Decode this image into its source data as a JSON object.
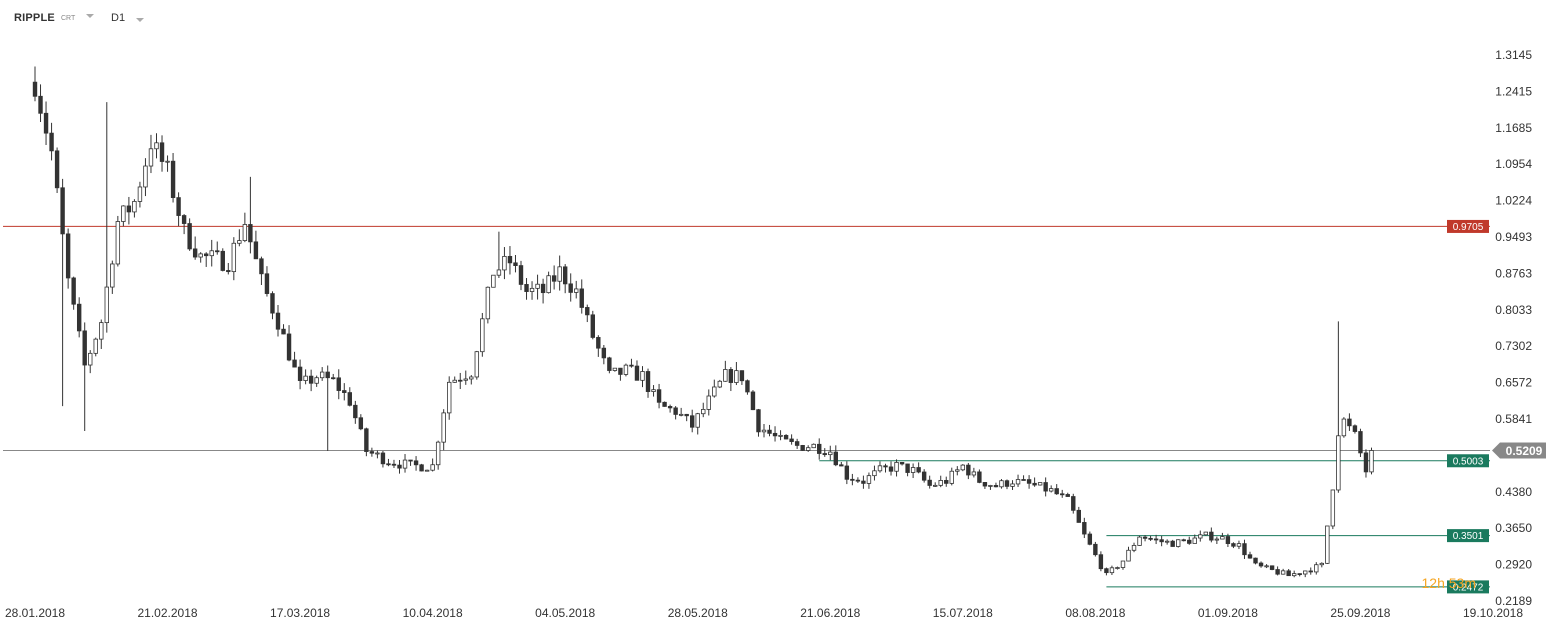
{
  "toolbar": {
    "symbol": "RIPPLE",
    "source": "CRT",
    "timeframe": "D1"
  },
  "countdown": "12h 53m",
  "colors": {
    "candle": "#333333",
    "bull_fill": "#ffffff",
    "bear_fill": "#333333",
    "resistance": "#c0392b",
    "support": "#1a7a5e",
    "current": "#888888"
  },
  "chart_data": {
    "type": "candlestick",
    "title": "",
    "xlabel": "",
    "ylabel": "",
    "x_range": [
      "2018-01-28",
      "2018-10-19"
    ],
    "ylim": [
      0.2189,
      1.37
    ],
    "y_ticks": [
      "1.3145",
      "1.2415",
      "1.1685",
      "1.0954",
      "1.0224",
      "0.9493",
      "0.8763",
      "0.8033",
      "0.7302",
      "0.6572",
      "0.5841",
      "0.5209",
      "0.4380",
      "0.3650",
      "0.2920",
      "0.2189"
    ],
    "x_ticks": [
      "28.01.2018",
      "21.02.2018",
      "17.03.2018",
      "10.04.2018",
      "04.05.2018",
      "28.05.2018",
      "21.06.2018",
      "15.07.2018",
      "08.08.2018",
      "01.09.2018",
      "25.09.2018",
      "19.10.2018"
    ],
    "grid": false,
    "levels": [
      {
        "label": "0.9705",
        "value": 0.9705,
        "kind": "resistance"
      },
      {
        "label": "0.5003",
        "value": 0.5003,
        "kind": "support",
        "start": "2018-06-19"
      },
      {
        "label": "0.3501",
        "value": 0.3501,
        "kind": "support",
        "start": "2018-08-10"
      },
      {
        "label": "0.2472",
        "value": 0.2472,
        "kind": "support",
        "start": "2018-08-10"
      }
    ],
    "current_price": {
      "label": "0.5209",
      "value": 0.5209
    },
    "anchors": [
      [
        "2018-01-28",
        1.26
      ],
      [
        "2018-01-31",
        1.12
      ],
      [
        "2018-02-03",
        0.86
      ],
      [
        "2018-02-06",
        0.69
      ],
      [
        "2018-02-09",
        0.78
      ],
      [
        "2018-02-12",
        0.98
      ],
      [
        "2018-02-15",
        1.02
      ],
      [
        "2018-02-18",
        1.14
      ],
      [
        "2018-02-21",
        1.08
      ],
      [
        "2018-02-24",
        0.96
      ],
      [
        "2018-02-27",
        0.91
      ],
      [
        "2018-03-04",
        0.9
      ],
      [
        "2018-03-07",
        0.98
      ],
      [
        "2018-03-10",
        0.86
      ],
      [
        "2018-03-13",
        0.78
      ],
      [
        "2018-03-17",
        0.65
      ],
      [
        "2018-03-20",
        0.67
      ],
      [
        "2018-03-23",
        0.66
      ],
      [
        "2018-03-26",
        0.62
      ],
      [
        "2018-03-29",
        0.52
      ],
      [
        "2018-04-02",
        0.5
      ],
      [
        "2018-04-06",
        0.49
      ],
      [
        "2018-04-10",
        0.49
      ],
      [
        "2018-04-13",
        0.66
      ],
      [
        "2018-04-17",
        0.68
      ],
      [
        "2018-04-21",
        0.88
      ],
      [
        "2018-04-24",
        0.9
      ],
      [
        "2018-04-27",
        0.84
      ],
      [
        "2018-04-30",
        0.84
      ],
      [
        "2018-05-03",
        0.88
      ],
      [
        "2018-05-06",
        0.84
      ],
      [
        "2018-05-09",
        0.75
      ],
      [
        "2018-05-12",
        0.67
      ],
      [
        "2018-05-15",
        0.68
      ],
      [
        "2018-05-18",
        0.67
      ],
      [
        "2018-05-21",
        0.61
      ],
      [
        "2018-05-24",
        0.6
      ],
      [
        "2018-05-27",
        0.57
      ],
      [
        "2018-05-30",
        0.62
      ],
      [
        "2018-06-02",
        0.67
      ],
      [
        "2018-06-05",
        0.67
      ],
      [
        "2018-06-08",
        0.57
      ],
      [
        "2018-06-12",
        0.54
      ],
      [
        "2018-06-15",
        0.53
      ],
      [
        "2018-06-18",
        0.53
      ],
      [
        "2018-06-21",
        0.52
      ],
      [
        "2018-06-24",
        0.47
      ],
      [
        "2018-06-27",
        0.46
      ],
      [
        "2018-06-30",
        0.48
      ],
      [
        "2018-07-03",
        0.49
      ],
      [
        "2018-07-06",
        0.48
      ],
      [
        "2018-07-09",
        0.45
      ],
      [
        "2018-07-12",
        0.46
      ],
      [
        "2018-07-15",
        0.49
      ],
      [
        "2018-07-18",
        0.46
      ],
      [
        "2018-07-21",
        0.45
      ],
      [
        "2018-07-24",
        0.46
      ],
      [
        "2018-07-28",
        0.45
      ],
      [
        "2018-07-31",
        0.44
      ],
      [
        "2018-08-03",
        0.42
      ],
      [
        "2018-08-06",
        0.35
      ],
      [
        "2018-08-08",
        0.31
      ],
      [
        "2018-08-10",
        0.27
      ],
      [
        "2018-08-13",
        0.3
      ],
      [
        "2018-08-16",
        0.35
      ],
      [
        "2018-08-19",
        0.34
      ],
      [
        "2018-08-22",
        0.335
      ],
      [
        "2018-08-25",
        0.34
      ],
      [
        "2018-08-28",
        0.35
      ],
      [
        "2018-08-31",
        0.345
      ],
      [
        "2018-09-03",
        0.33
      ],
      [
        "2018-09-06",
        0.29
      ],
      [
        "2018-09-09",
        0.28
      ],
      [
        "2018-09-12",
        0.27
      ],
      [
        "2018-09-15",
        0.28
      ],
      [
        "2018-09-18",
        0.29
      ],
      [
        "2018-09-20",
        0.45
      ],
      [
        "2018-09-21",
        0.56
      ],
      [
        "2018-09-22",
        0.58
      ],
      [
        "2018-09-24",
        0.55
      ],
      [
        "2018-09-26",
        0.48
      ],
      [
        "2018-09-27",
        0.5209
      ]
    ]
  }
}
